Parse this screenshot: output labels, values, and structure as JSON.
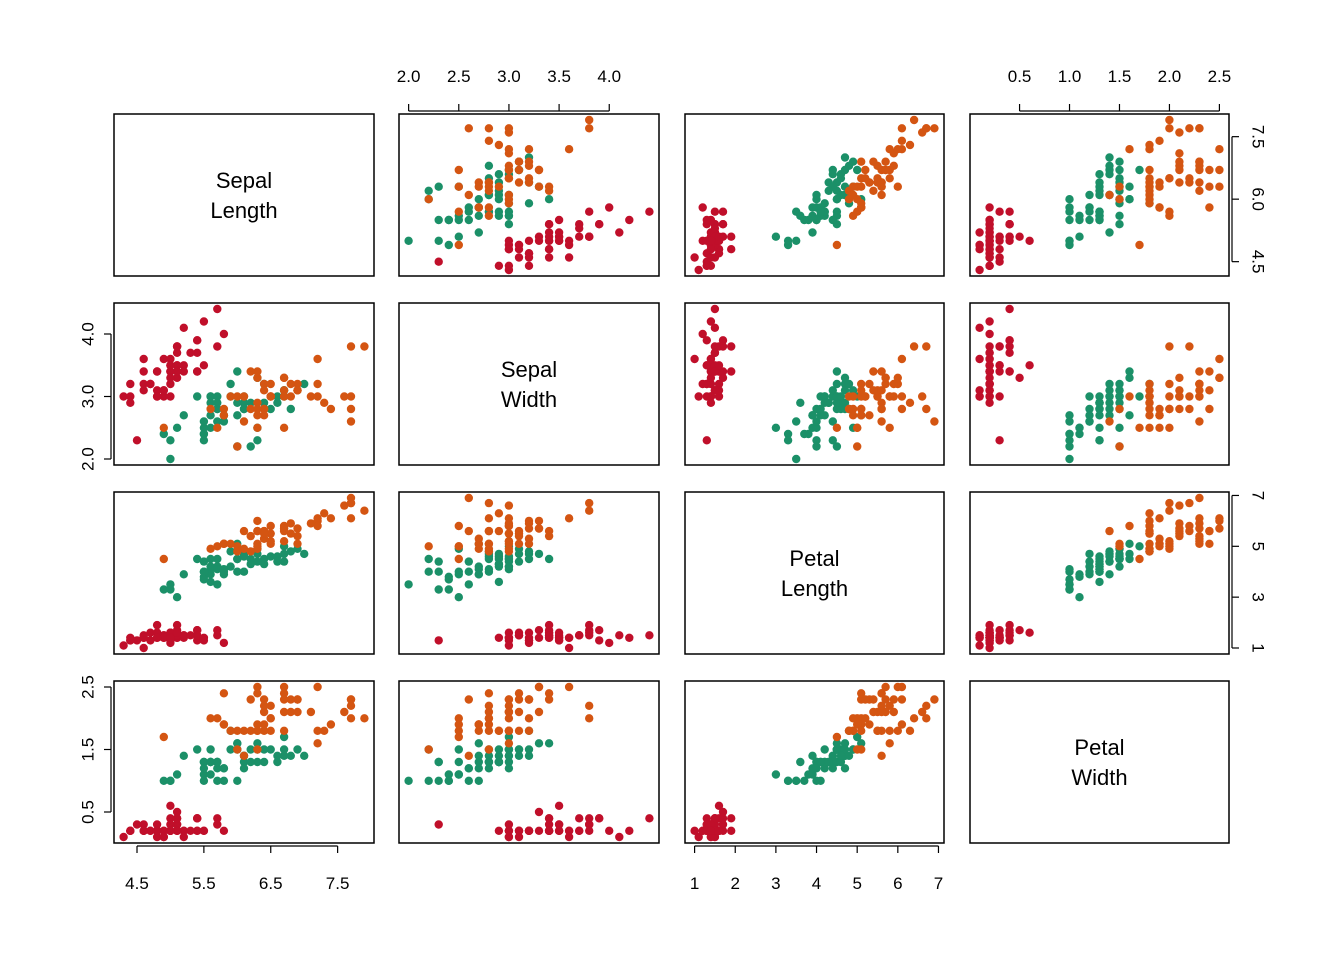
{
  "chart_data": {
    "type": "scatter",
    "variables": [
      {
        "key": "sepal_length",
        "label_lines": [
          "Sepal",
          "Length"
        ],
        "range": [
          4.3,
          7.9
        ],
        "ticks": [
          "4.5",
          "5.5",
          "6.5",
          "7.5",
          "4.5",
          "6.0",
          "7.5"
        ]
      },
      {
        "key": "sepal_width",
        "label_lines": [
          "Sepal",
          "Width"
        ],
        "range": [
          2.0,
          4.4
        ],
        "ticks": [
          "2.0",
          "2.5",
          "3.0",
          "3.5",
          "4.0",
          "2.0",
          "3.0",
          "4.0"
        ]
      },
      {
        "key": "petal_length",
        "label_lines": [
          "Petal",
          "Length"
        ],
        "range": [
          1.0,
          6.9
        ],
        "ticks": [
          "1",
          "2",
          "3",
          "4",
          "5",
          "6",
          "7",
          "1",
          "3",
          "5",
          "7"
        ]
      },
      {
        "key": "petal_width",
        "label_lines": [
          "Petal",
          "Width"
        ],
        "range": [
          0.1,
          2.5
        ],
        "ticks": [
          "0.5",
          "1.0",
          "1.5",
          "2.0",
          "2.5",
          "0.5",
          "1.5",
          "2.5"
        ]
      }
    ],
    "tick_values": {
      "sepal_length_bottom": [
        4.5,
        5.5,
        6.5,
        7.5
      ],
      "sepal_length_right": [
        4.5,
        6.0,
        7.5
      ],
      "sepal_width_top": [
        2.0,
        2.5,
        3.0,
        3.5,
        4.0
      ],
      "sepal_width_left": [
        2.0,
        3.0,
        4.0
      ],
      "petal_length_bottom": [
        1,
        2,
        3,
        4,
        5,
        6,
        7
      ],
      "petal_length_right": [
        1,
        3,
        5,
        7
      ],
      "petal_width_top": [
        0.5,
        1.0,
        1.5,
        2.0,
        2.5
      ],
      "petal_width_left": [
        0.5,
        1.5,
        2.5
      ]
    },
    "series": [
      {
        "color": "#C00F2A",
        "points": [
          [
            5.1,
            3.5,
            1.4,
            0.2
          ],
          [
            4.9,
            3.0,
            1.4,
            0.2
          ],
          [
            4.7,
            3.2,
            1.3,
            0.2
          ],
          [
            4.6,
            3.1,
            1.5,
            0.2
          ],
          [
            5.0,
            3.6,
            1.4,
            0.2
          ],
          [
            5.4,
            3.9,
            1.7,
            0.4
          ],
          [
            4.6,
            3.4,
            1.4,
            0.3
          ],
          [
            5.0,
            3.4,
            1.5,
            0.2
          ],
          [
            4.4,
            2.9,
            1.4,
            0.2
          ],
          [
            4.9,
            3.1,
            1.5,
            0.1
          ],
          [
            5.4,
            3.7,
            1.5,
            0.2
          ],
          [
            4.8,
            3.4,
            1.6,
            0.2
          ],
          [
            4.8,
            3.0,
            1.4,
            0.1
          ],
          [
            4.3,
            3.0,
            1.1,
            0.1
          ],
          [
            5.8,
            4.0,
            1.2,
            0.2
          ],
          [
            5.7,
            4.4,
            1.5,
            0.4
          ],
          [
            5.4,
            3.9,
            1.3,
            0.4
          ],
          [
            5.1,
            3.5,
            1.4,
            0.3
          ],
          [
            5.7,
            3.8,
            1.7,
            0.3
          ],
          [
            5.1,
            3.8,
            1.5,
            0.3
          ],
          [
            5.4,
            3.4,
            1.7,
            0.2
          ],
          [
            5.1,
            3.7,
            1.5,
            0.4
          ],
          [
            4.6,
            3.6,
            1.0,
            0.2
          ],
          [
            5.1,
            3.3,
            1.7,
            0.5
          ],
          [
            4.8,
            3.4,
            1.9,
            0.2
          ],
          [
            5.0,
            3.0,
            1.6,
            0.2
          ],
          [
            5.0,
            3.4,
            1.6,
            0.4
          ],
          [
            5.2,
            3.5,
            1.5,
            0.2
          ],
          [
            5.2,
            3.4,
            1.4,
            0.2
          ],
          [
            4.7,
            3.2,
            1.6,
            0.2
          ],
          [
            4.8,
            3.1,
            1.6,
            0.2
          ],
          [
            5.4,
            3.4,
            1.5,
            0.4
          ],
          [
            5.2,
            4.1,
            1.5,
            0.1
          ],
          [
            5.5,
            4.2,
            1.4,
            0.2
          ],
          [
            4.9,
            3.1,
            1.5,
            0.2
          ],
          [
            5.0,
            3.2,
            1.2,
            0.2
          ],
          [
            5.5,
            3.5,
            1.3,
            0.2
          ],
          [
            4.9,
            3.6,
            1.4,
            0.1
          ],
          [
            4.4,
            3.0,
            1.3,
            0.2
          ],
          [
            5.1,
            3.4,
            1.5,
            0.2
          ],
          [
            5.0,
            3.5,
            1.3,
            0.3
          ],
          [
            4.5,
            2.3,
            1.3,
            0.3
          ],
          [
            4.4,
            3.2,
            1.3,
            0.2
          ],
          [
            5.0,
            3.5,
            1.6,
            0.6
          ],
          [
            5.1,
            3.8,
            1.9,
            0.4
          ],
          [
            4.8,
            3.0,
            1.4,
            0.3
          ],
          [
            5.1,
            3.8,
            1.6,
            0.2
          ],
          [
            4.6,
            3.2,
            1.4,
            0.2
          ],
          [
            5.3,
            3.7,
            1.5,
            0.2
          ],
          [
            5.0,
            3.3,
            1.4,
            0.2
          ]
        ]
      },
      {
        "color": "#1B9068",
        "points": [
          [
            7.0,
            3.2,
            4.7,
            1.4
          ],
          [
            6.4,
            3.2,
            4.5,
            1.5
          ],
          [
            6.9,
            3.1,
            4.9,
            1.5
          ],
          [
            5.5,
            2.3,
            4.0,
            1.3
          ],
          [
            6.5,
            2.8,
            4.6,
            1.5
          ],
          [
            5.7,
            2.8,
            4.5,
            1.3
          ],
          [
            6.3,
            3.3,
            4.7,
            1.6
          ],
          [
            4.9,
            2.4,
            3.3,
            1.0
          ],
          [
            6.6,
            2.9,
            4.6,
            1.3
          ],
          [
            5.2,
            2.7,
            3.9,
            1.4
          ],
          [
            5.0,
            2.0,
            3.5,
            1.0
          ],
          [
            5.9,
            3.0,
            4.2,
            1.5
          ],
          [
            6.0,
            2.2,
            4.0,
            1.0
          ],
          [
            6.1,
            2.9,
            4.7,
            1.4
          ],
          [
            5.6,
            2.9,
            3.6,
            1.3
          ],
          [
            6.7,
            3.1,
            4.4,
            1.4
          ],
          [
            5.6,
            3.0,
            4.5,
            1.5
          ],
          [
            5.8,
            2.7,
            4.1,
            1.0
          ],
          [
            6.2,
            2.2,
            4.5,
            1.5
          ],
          [
            5.6,
            2.5,
            3.9,
            1.1
          ],
          [
            5.9,
            3.2,
            4.8,
            1.8
          ],
          [
            6.1,
            2.8,
            4.0,
            1.3
          ],
          [
            6.3,
            2.5,
            4.9,
            1.5
          ],
          [
            6.1,
            2.8,
            4.7,
            1.2
          ],
          [
            6.4,
            2.9,
            4.3,
            1.3
          ],
          [
            6.6,
            3.0,
            4.4,
            1.4
          ],
          [
            6.8,
            2.8,
            4.8,
            1.4
          ],
          [
            6.7,
            3.0,
            5.0,
            1.7
          ],
          [
            6.0,
            2.9,
            4.5,
            1.5
          ],
          [
            5.7,
            2.6,
            3.5,
            1.0
          ],
          [
            5.5,
            2.4,
            3.8,
            1.1
          ],
          [
            5.5,
            2.4,
            3.7,
            1.0
          ],
          [
            5.8,
            2.7,
            3.9,
            1.2
          ],
          [
            6.0,
            2.7,
            5.1,
            1.6
          ],
          [
            5.4,
            3.0,
            4.5,
            1.5
          ],
          [
            6.0,
            3.4,
            4.5,
            1.6
          ],
          [
            6.7,
            3.1,
            4.7,
            1.5
          ],
          [
            6.3,
            2.3,
            4.4,
            1.3
          ],
          [
            5.6,
            3.0,
            4.1,
            1.3
          ],
          [
            5.5,
            2.5,
            4.0,
            1.3
          ],
          [
            5.5,
            2.6,
            4.4,
            1.2
          ],
          [
            6.1,
            3.0,
            4.6,
            1.4
          ],
          [
            5.8,
            2.6,
            4.0,
            1.2
          ],
          [
            5.0,
            2.3,
            3.3,
            1.0
          ],
          [
            5.6,
            2.7,
            4.2,
            1.3
          ],
          [
            5.7,
            3.0,
            4.2,
            1.2
          ],
          [
            5.7,
            2.9,
            4.2,
            1.3
          ],
          [
            6.2,
            2.9,
            4.3,
            1.3
          ],
          [
            5.1,
            2.5,
            3.0,
            1.1
          ],
          [
            5.7,
            2.8,
            4.1,
            1.3
          ]
        ]
      },
      {
        "color": "#D45512",
        "points": [
          [
            6.3,
            3.3,
            6.0,
            2.5
          ],
          [
            5.8,
            2.7,
            5.1,
            1.9
          ],
          [
            7.1,
            3.0,
            5.9,
            2.1
          ],
          [
            6.3,
            2.9,
            5.6,
            1.8
          ],
          [
            6.5,
            3.0,
            5.8,
            2.2
          ],
          [
            7.6,
            3.0,
            6.6,
            2.1
          ],
          [
            4.9,
            2.5,
            4.5,
            1.7
          ],
          [
            7.3,
            2.9,
            6.3,
            1.8
          ],
          [
            6.7,
            2.5,
            5.8,
            1.8
          ],
          [
            7.2,
            3.6,
            6.1,
            2.5
          ],
          [
            6.5,
            3.2,
            5.1,
            2.0
          ],
          [
            6.4,
            2.7,
            5.3,
            1.9
          ],
          [
            6.8,
            3.0,
            5.5,
            2.1
          ],
          [
            5.7,
            2.5,
            5.0,
            2.0
          ],
          [
            5.8,
            2.8,
            5.1,
            2.4
          ],
          [
            6.4,
            3.2,
            5.3,
            2.3
          ],
          [
            6.5,
            3.0,
            5.5,
            1.8
          ],
          [
            7.7,
            3.8,
            6.7,
            2.2
          ],
          [
            7.7,
            2.6,
            6.9,
            2.3
          ],
          [
            6.0,
            2.2,
            5.0,
            1.5
          ],
          [
            6.9,
            3.2,
            5.7,
            2.3
          ],
          [
            5.6,
            2.8,
            4.9,
            2.0
          ],
          [
            7.7,
            2.8,
            6.7,
            2.0
          ],
          [
            6.3,
            2.7,
            4.9,
            1.8
          ],
          [
            6.7,
            3.3,
            5.7,
            2.1
          ],
          [
            7.2,
            3.2,
            6.0,
            1.8
          ],
          [
            6.2,
            2.8,
            4.8,
            1.8
          ],
          [
            6.1,
            3.0,
            4.9,
            1.8
          ],
          [
            6.4,
            2.8,
            5.6,
            2.1
          ],
          [
            7.2,
            3.0,
            5.8,
            1.6
          ],
          [
            7.4,
            2.8,
            6.1,
            1.9
          ],
          [
            7.9,
            3.8,
            6.4,
            2.0
          ],
          [
            6.4,
            2.8,
            5.6,
            2.2
          ],
          [
            6.3,
            2.8,
            5.1,
            1.5
          ],
          [
            6.1,
            2.6,
            5.6,
            1.4
          ],
          [
            7.7,
            3.0,
            6.1,
            2.3
          ],
          [
            6.3,
            3.4,
            5.6,
            2.4
          ],
          [
            6.4,
            3.1,
            5.5,
            1.8
          ],
          [
            6.0,
            3.0,
            4.8,
            1.8
          ],
          [
            6.9,
            3.1,
            5.4,
            2.1
          ],
          [
            6.7,
            3.1,
            5.6,
            2.4
          ],
          [
            6.9,
            3.1,
            5.1,
            2.3
          ],
          [
            5.8,
            2.7,
            5.1,
            1.9
          ],
          [
            6.8,
            3.2,
            5.9,
            2.3
          ],
          [
            6.7,
            3.3,
            5.7,
            2.5
          ],
          [
            6.7,
            3.0,
            5.2,
            2.3
          ],
          [
            6.3,
            2.5,
            5.0,
            1.9
          ],
          [
            6.5,
            3.0,
            5.2,
            2.0
          ],
          [
            6.2,
            3.4,
            5.4,
            2.3
          ],
          [
            5.9,
            3.0,
            5.1,
            1.8
          ]
        ]
      }
    ]
  }
}
